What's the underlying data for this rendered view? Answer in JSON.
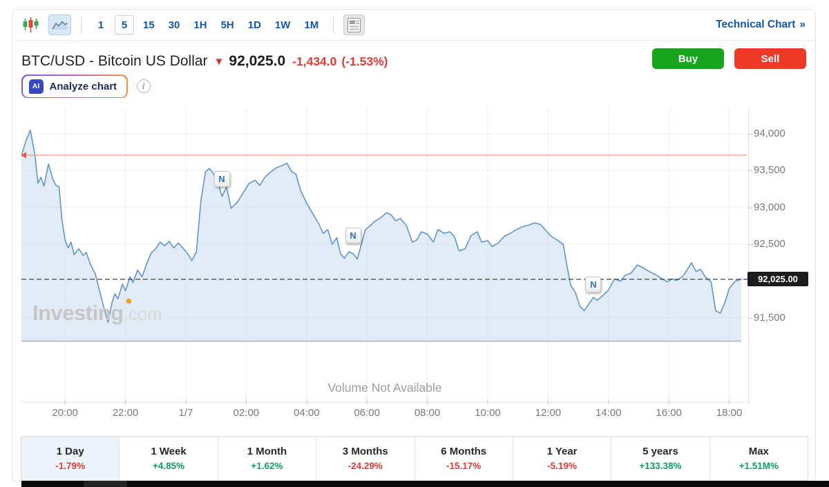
{
  "toolbar": {
    "candlestick_icon": "candlestick-chart",
    "area_icon": "area-chart",
    "news_icon": "news-panel",
    "intervals": [
      {
        "label": "1",
        "selected": false
      },
      {
        "label": "5",
        "selected": true
      },
      {
        "label": "15",
        "selected": false
      },
      {
        "label": "30",
        "selected": false
      },
      {
        "label": "1H",
        "selected": false
      },
      {
        "label": "5H",
        "selected": false
      },
      {
        "label": "1D",
        "selected": false
      },
      {
        "label": "1W",
        "selected": false
      },
      {
        "label": "1M",
        "selected": false
      }
    ],
    "technical_chart_label": "Technical Chart",
    "technical_chart_arrow": "»"
  },
  "header": {
    "title": "BTC/USD - Bitcoin US Dollar",
    "down_arrow": "▼",
    "price": "92,025.0",
    "change": "-1,434.0",
    "change_pct": "(-1.53%)",
    "buy_label": "Buy",
    "sell_label": "Sell",
    "buy_color": "#18a51e",
    "sell_color": "#ee3a26"
  },
  "analyze": {
    "ai_badge": "AI",
    "label": "Analyze chart",
    "info_icon": "i"
  },
  "watermark": {
    "main": "Investing",
    "suffix": ".com"
  },
  "chart_data": {
    "type": "area",
    "symbol": "BTC/USD",
    "interval": "5 minutes",
    "ylim": [
      91200,
      94350
    ],
    "grid": true,
    "y_ticks": [
      {
        "label": "94,000",
        "value": 94000
      },
      {
        "label": "93,500",
        "value": 93500
      },
      {
        "label": "93,000",
        "value": 93000
      },
      {
        "label": "92,500",
        "value": 92500
      },
      {
        "label": "91,500",
        "value": 91500
      }
    ],
    "x_ticks": [
      {
        "label": "20:00",
        "h": -4
      },
      {
        "label": "22:00",
        "h": -2
      },
      {
        "label": "1/7",
        "h": 0
      },
      {
        "label": "02:00",
        "h": 2
      },
      {
        "label": "04:00",
        "h": 4
      },
      {
        "label": "06:00",
        "h": 6
      },
      {
        "label": "08:00",
        "h": 8
      },
      {
        "label": "10:00",
        "h": 10
      },
      {
        "label": "12:00",
        "h": 12
      },
      {
        "label": "14:00",
        "h": 14
      },
      {
        "label": "16:00",
        "h": 16
      },
      {
        "label": "18:00",
        "h": 18
      }
    ],
    "current_price": 92025,
    "current_price_label": "92,025.00",
    "red_line_price": 93710,
    "line_color": "#6095cb",
    "fill_color": "rgba(188,212,235,0.45)",
    "news_markers": [
      {
        "label": "N",
        "h": 1.19,
        "price": 93390
      },
      {
        "label": "N",
        "h": 5.54,
        "price": 92620
      },
      {
        "label": "N",
        "h": 13.5,
        "price": 91950
      }
    ],
    "volume_note": "Volume Not Available",
    "series": [
      [
        -5.45,
        93700
      ],
      [
        -5.3,
        93900
      ],
      [
        -5.15,
        94050
      ],
      [
        -5.0,
        93720
      ],
      [
        -4.9,
        93330
      ],
      [
        -4.8,
        93410
      ],
      [
        -4.7,
        93290
      ],
      [
        -4.55,
        93590
      ],
      [
        -4.4,
        93380
      ],
      [
        -4.3,
        93300
      ],
      [
        -4.2,
        93280
      ],
      [
        -4.1,
        92820
      ],
      [
        -4.0,
        92560
      ],
      [
        -3.9,
        92450
      ],
      [
        -3.8,
        92530
      ],
      [
        -3.7,
        92360
      ],
      [
        -3.55,
        92440
      ],
      [
        -3.4,
        92350
      ],
      [
        -3.3,
        92390
      ],
      [
        -3.15,
        92220
      ],
      [
        -3.0,
        92100
      ],
      [
        -2.85,
        91850
      ],
      [
        -2.7,
        91620
      ],
      [
        -2.58,
        91440
      ],
      [
        -2.45,
        91700
      ],
      [
        -2.35,
        91830
      ],
      [
        -2.25,
        91760
      ],
      [
        -2.1,
        91960
      ],
      [
        -2.0,
        91870
      ],
      [
        -1.85,
        92060
      ],
      [
        -1.75,
        91980
      ],
      [
        -1.6,
        92150
      ],
      [
        -1.45,
        92060
      ],
      [
        -1.3,
        92230
      ],
      [
        -1.15,
        92380
      ],
      [
        -1.0,
        92440
      ],
      [
        -0.85,
        92530
      ],
      [
        -0.7,
        92480
      ],
      [
        -0.55,
        92540
      ],
      [
        -0.4,
        92450
      ],
      [
        -0.25,
        92520
      ],
      [
        -0.1,
        92450
      ],
      [
        0.05,
        92380
      ],
      [
        0.2,
        92280
      ],
      [
        0.35,
        92400
      ],
      [
        0.5,
        93100
      ],
      [
        0.65,
        93480
      ],
      [
        0.78,
        93530
      ],
      [
        0.9,
        93470
      ],
      [
        1.05,
        93360
      ],
      [
        1.2,
        93150
      ],
      [
        1.35,
        93280
      ],
      [
        1.5,
        92990
      ],
      [
        1.7,
        93070
      ],
      [
        1.9,
        93200
      ],
      [
        2.1,
        93330
      ],
      [
        2.3,
        93370
      ],
      [
        2.45,
        93300
      ],
      [
        2.6,
        93400
      ],
      [
        2.8,
        93480
      ],
      [
        3.0,
        93540
      ],
      [
        3.2,
        93570
      ],
      [
        3.35,
        93600
      ],
      [
        3.5,
        93490
      ],
      [
        3.65,
        93450
      ],
      [
        3.8,
        93230
      ],
      [
        4.0,
        93060
      ],
      [
        4.2,
        92920
      ],
      [
        4.4,
        92780
      ],
      [
        4.55,
        92650
      ],
      [
        4.7,
        92700
      ],
      [
        4.85,
        92500
      ],
      [
        5.0,
        92590
      ],
      [
        5.12,
        92380
      ],
      [
        5.25,
        92310
      ],
      [
        5.4,
        92400
      ],
      [
        5.55,
        92370
      ],
      [
        5.68,
        92300
      ],
      [
        5.8,
        92480
      ],
      [
        5.95,
        92700
      ],
      [
        6.1,
        92750
      ],
      [
        6.25,
        92810
      ],
      [
        6.45,
        92860
      ],
      [
        6.65,
        92930
      ],
      [
        6.8,
        92900
      ],
      [
        6.95,
        92820
      ],
      [
        7.1,
        92850
      ],
      [
        7.3,
        92760
      ],
      [
        7.5,
        92530
      ],
      [
        7.65,
        92560
      ],
      [
        7.8,
        92670
      ],
      [
        8.0,
        92640
      ],
      [
        8.2,
        92530
      ],
      [
        8.35,
        92700
      ],
      [
        8.55,
        92650
      ],
      [
        8.75,
        92670
      ],
      [
        8.9,
        92600
      ],
      [
        9.05,
        92410
      ],
      [
        9.25,
        92440
      ],
      [
        9.45,
        92620
      ],
      [
        9.65,
        92670
      ],
      [
        9.8,
        92530
      ],
      [
        10.0,
        92550
      ],
      [
        10.15,
        92470
      ],
      [
        10.35,
        92520
      ],
      [
        10.55,
        92610
      ],
      [
        10.75,
        92650
      ],
      [
        10.95,
        92700
      ],
      [
        11.15,
        92740
      ],
      [
        11.35,
        92760
      ],
      [
        11.55,
        92790
      ],
      [
        11.75,
        92770
      ],
      [
        11.9,
        92700
      ],
      [
        12.1,
        92610
      ],
      [
        12.3,
        92560
      ],
      [
        12.5,
        92500
      ],
      [
        12.62,
        92220
      ],
      [
        12.75,
        91940
      ],
      [
        12.9,
        91850
      ],
      [
        13.05,
        91660
      ],
      [
        13.2,
        91600
      ],
      [
        13.35,
        91690
      ],
      [
        13.5,
        91780
      ],
      [
        13.62,
        91740
      ],
      [
        13.8,
        91800
      ],
      [
        14.0,
        91880
      ],
      [
        14.2,
        92030
      ],
      [
        14.4,
        92000
      ],
      [
        14.55,
        92080
      ],
      [
        14.75,
        92110
      ],
      [
        14.95,
        92220
      ],
      [
        15.15,
        92180
      ],
      [
        15.35,
        92130
      ],
      [
        15.55,
        92090
      ],
      [
        15.75,
        92040
      ],
      [
        15.95,
        91990
      ],
      [
        16.1,
        92030
      ],
      [
        16.25,
        92010
      ],
      [
        16.45,
        92060
      ],
      [
        16.6,
        92150
      ],
      [
        16.75,
        92250
      ],
      [
        16.9,
        92130
      ],
      [
        17.05,
        92160
      ],
      [
        17.2,
        92060
      ],
      [
        17.4,
        91990
      ],
      [
        17.55,
        91600
      ],
      [
        17.7,
        91565
      ],
      [
        17.85,
        91700
      ],
      [
        18.0,
        91900
      ],
      [
        18.2,
        92000
      ],
      [
        18.4,
        92025
      ]
    ]
  },
  "performance": {
    "items": [
      {
        "label": "1 Day",
        "value": "-1.79%",
        "dir": "down",
        "selected": true
      },
      {
        "label": "1 Week",
        "value": "+4.85%",
        "dir": "up",
        "selected": false
      },
      {
        "label": "1 Month",
        "value": "+1.62%",
        "dir": "up",
        "selected": false
      },
      {
        "label": "3 Months",
        "value": "-24.29%",
        "dir": "down",
        "selected": false
      },
      {
        "label": "6 Months",
        "value": "-15.17%",
        "dir": "down",
        "selected": false
      },
      {
        "label": "1 Year",
        "value": "-5.19%",
        "dir": "down",
        "selected": false
      },
      {
        "label": "5 years",
        "value": "+133.38%",
        "dir": "up",
        "selected": false
      },
      {
        "label": "Max",
        "value": "+1.51M%",
        "dir": "up",
        "selected": false
      }
    ]
  }
}
